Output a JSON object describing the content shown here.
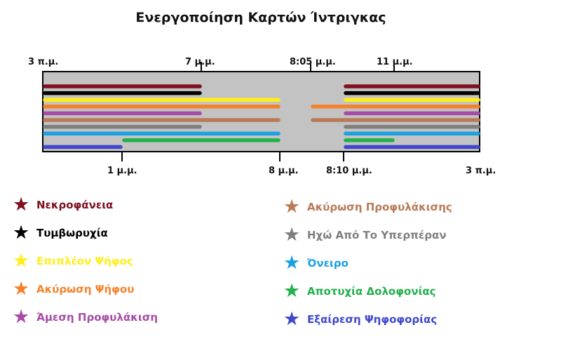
{
  "title": "Ενεργοποίηση Καρτών Ίντριγκας",
  "timeline": {
    "top_ticks": [
      {
        "label": "3 π.μ."
      },
      {
        "label": "7 μ.μ."
      },
      {
        "label": "8:05 μ.μ."
      },
      {
        "label": "11 μ.μ."
      }
    ],
    "bottom_ticks": [
      {
        "label": "1 μ.μ."
      },
      {
        "label": "8 μ.μ."
      },
      {
        "label": "8:10 μ.μ."
      },
      {
        "label": "3 π.μ."
      }
    ]
  },
  "cards": [
    {
      "name": "Νεκροφάνεια",
      "color": "#7f0f1f",
      "segments": [
        [
          "3 π.μ.",
          "7 μ.μ."
        ],
        [
          "8:10 μ.μ.",
          "3 π.μ."
        ]
      ]
    },
    {
      "name": "Τυμβωρυχία",
      "color": "#000000",
      "segments": [
        [
          "3 π.μ.",
          "7 μ.μ."
        ],
        [
          "8:10 μ.μ.",
          "3 π.μ."
        ]
      ]
    },
    {
      "name": "Επιπλέον Ψήφος",
      "color": "#ffee1a",
      "segments": [
        [
          "3 π.μ.",
          "8 μ.μ."
        ],
        [
          "8:10 μ.μ.",
          "3 π.μ."
        ]
      ]
    },
    {
      "name": "Ακύρωση Ψήφου",
      "color": "#f5822b",
      "segments": [
        [
          "3 π.μ.",
          "8 μ.μ."
        ],
        [
          "8:05 μ.μ.",
          "3 π.μ."
        ]
      ]
    },
    {
      "name": "Άμεση Προφυλάκιση",
      "color": "#a64ca6",
      "segments": [
        [
          "3 π.μ.",
          "7 μ.μ."
        ],
        [
          "8:10 μ.μ.",
          "3 π.μ."
        ]
      ]
    },
    {
      "name": "Ακύρωση Προφυλάκισης",
      "color": "#b97a57",
      "segments": [
        [
          "3 π.μ.",
          "8 μ.μ."
        ],
        [
          "8:05 μ.μ.",
          "3 π.μ."
        ]
      ]
    },
    {
      "name": "Ηχώ Από Το Υπερπέραν",
      "color": "#7f7f7f",
      "segments": [
        [
          "3 π.μ.",
          "7 μ.μ."
        ],
        [
          "8:10 μ.μ.",
          "3 π.μ."
        ]
      ]
    },
    {
      "name": "Όνειρο",
      "color": "#1ba1e2",
      "segments": [
        [
          "3 π.μ.",
          "8 μ.μ."
        ],
        [
          "8:10 μ.μ.",
          "3 π.μ."
        ]
      ]
    },
    {
      "name": "Αποτυχία Δολοφονίας",
      "color": "#22b14c",
      "segments": [
        [
          "1 μ.μ.",
          "8 μ.μ."
        ],
        [
          "8:10 μ.μ.",
          "11 μ.μ."
        ]
      ]
    },
    {
      "name": "Εξαίρεση Ψηφοφορίας",
      "color": "#3f48cc",
      "segments": [
        [
          "3 π.μ.",
          "1 μ.μ."
        ],
        [
          "8:10 μ.μ.",
          "3 π.μ."
        ]
      ]
    }
  ],
  "colors": {
    "track_fill": "#c3c3c3",
    "track_stroke": "#000000",
    "background": "#ffffff"
  }
}
